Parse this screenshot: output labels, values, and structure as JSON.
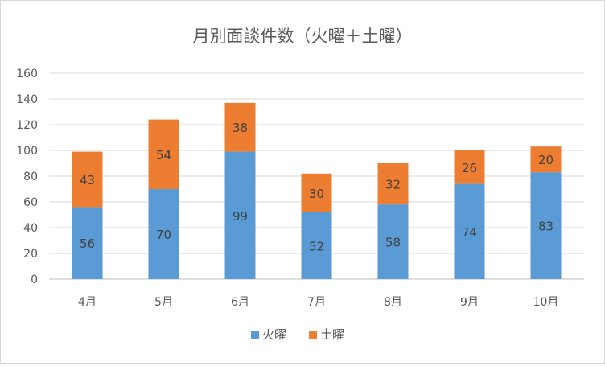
{
  "chart_data": {
    "type": "bar",
    "stacked": true,
    "title": "月別面談件数（火曜＋土曜）",
    "xlabel": "",
    "ylabel": "",
    "categories": [
      "4月",
      "5月",
      "6月",
      "7月",
      "8月",
      "9月",
      "10月"
    ],
    "series": [
      {
        "name": "火曜",
        "color": "#5B9BD5",
        "values": [
          56,
          70,
          99,
          52,
          58,
          74,
          83
        ]
      },
      {
        "name": "土曜",
        "color": "#ED7D31",
        "values": [
          43,
          54,
          38,
          30,
          32,
          26,
          20
        ]
      }
    ],
    "ylim": [
      0,
      160
    ],
    "yticks": [
      0,
      20,
      40,
      60,
      80,
      100,
      120,
      140,
      160
    ],
    "grid": true,
    "legend_position": "bottom",
    "data_labels": true
  }
}
